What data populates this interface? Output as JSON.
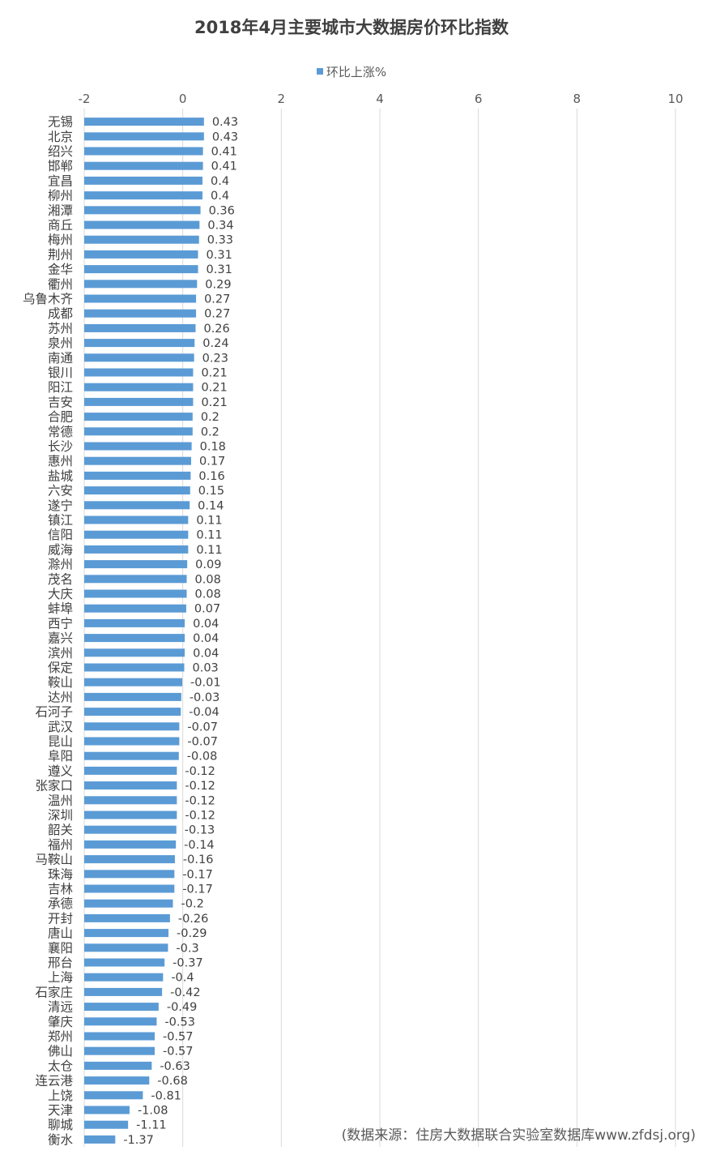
{
  "chart_data": {
    "type": "bar",
    "orientation": "horizontal",
    "title": "2018年4月主要城市大数据房价环比指数",
    "legend_position": "top",
    "xlim": [
      -2,
      10
    ],
    "x_ticks": [
      -2,
      0,
      2,
      4,
      6,
      8,
      10
    ],
    "grid": true,
    "series": [
      {
        "name": "环比上涨%",
        "color": "#5b9bd5"
      }
    ],
    "categories": [
      "无锡",
      "北京",
      "绍兴",
      "邯郸",
      "宜昌",
      "柳州",
      "湘潭",
      "商丘",
      "梅州",
      "荆州",
      "金华",
      "衢州",
      "乌鲁木齐",
      "成都",
      "苏州",
      "泉州",
      "南通",
      "银川",
      "阳江",
      "吉安",
      "合肥",
      "常德",
      "长沙",
      "惠州",
      "盐城",
      "六安",
      "遂宁",
      "镇江",
      "信阳",
      "威海",
      "滁州",
      "茂名",
      "大庆",
      "蚌埠",
      "西宁",
      "嘉兴",
      "滨州",
      "保定",
      "鞍山",
      "达州",
      "石河子",
      "武汉",
      "昆山",
      "阜阳",
      "遵义",
      "张家口",
      "温州",
      "深圳",
      "韶关",
      "福州",
      "马鞍山",
      "珠海",
      "吉林",
      "承德",
      "开封",
      "唐山",
      "襄阳",
      "邢台",
      "上海",
      "石家庄",
      "清远",
      "肇庆",
      "郑州",
      "佛山",
      "太仓",
      "连云港",
      "上饶",
      "天津",
      "聊城",
      "衡水"
    ],
    "values": [
      0.43,
      0.43,
      0.41,
      0.41,
      0.4,
      0.4,
      0.36,
      0.34,
      0.33,
      0.31,
      0.31,
      0.29,
      0.27,
      0.27,
      0.26,
      0.24,
      0.23,
      0.21,
      0.21,
      0.21,
      0.2,
      0.2,
      0.18,
      0.17,
      0.16,
      0.15,
      0.14,
      0.11,
      0.11,
      0.11,
      0.09,
      0.08,
      0.08,
      0.07,
      0.04,
      0.04,
      0.04,
      0.03,
      -0.01,
      -0.03,
      -0.04,
      -0.07,
      -0.07,
      -0.08,
      -0.12,
      -0.12,
      -0.12,
      -0.12,
      -0.13,
      -0.14,
      -0.16,
      -0.17,
      -0.17,
      -0.2,
      -0.26,
      -0.29,
      -0.3,
      -0.37,
      -0.4,
      -0.42,
      -0.49,
      -0.53,
      -0.57,
      -0.57,
      -0.63,
      -0.68,
      -0.81,
      -1.08,
      -1.11,
      -1.37
    ]
  },
  "source_note": "(数据来源：住房大数据联合实验室数据库www.zfdsj.org)"
}
